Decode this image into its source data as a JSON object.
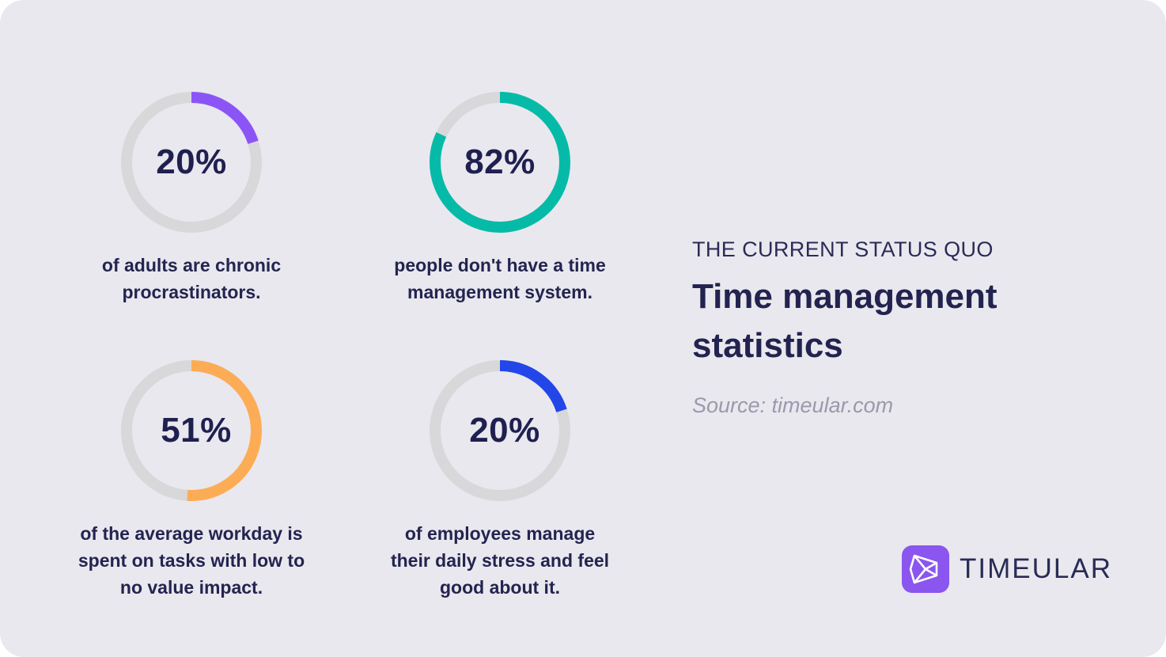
{
  "chart_data": [
    {
      "type": "pie",
      "value": 20,
      "max": 100,
      "label": "20%",
      "caption_lines": [
        "of adults are chronic",
        "procrastinators."
      ],
      "color": "#8b55f6"
    },
    {
      "type": "pie",
      "value": 82,
      "max": 100,
      "label": "82%",
      "caption_lines": [
        "people don't have a time",
        "management system."
      ],
      "color": "#05bba8"
    },
    {
      "type": "pie",
      "value": 51,
      "max": 100,
      "label": "51%",
      "caption_lines": [
        "of the average workday is",
        "spent on tasks with low to",
        "no value impact."
      ],
      "color": "#fdac56"
    },
    {
      "type": "pie",
      "value": 20,
      "max": 100,
      "label": "20%",
      "caption_lines": [
        "of employees manage",
        "their daily stress and feel",
        "good about it."
      ],
      "color": "#2346e8"
    }
  ],
  "track_color": "#d8d8da",
  "heading": {
    "eyebrow": "THE CURRENT STATUS QUO",
    "title": "Time management statistics",
    "source": "Source: timeular.com"
  },
  "brand": {
    "name": "TIMEULAR",
    "color": "#8b55ef",
    "icon": "play-prism-icon"
  }
}
